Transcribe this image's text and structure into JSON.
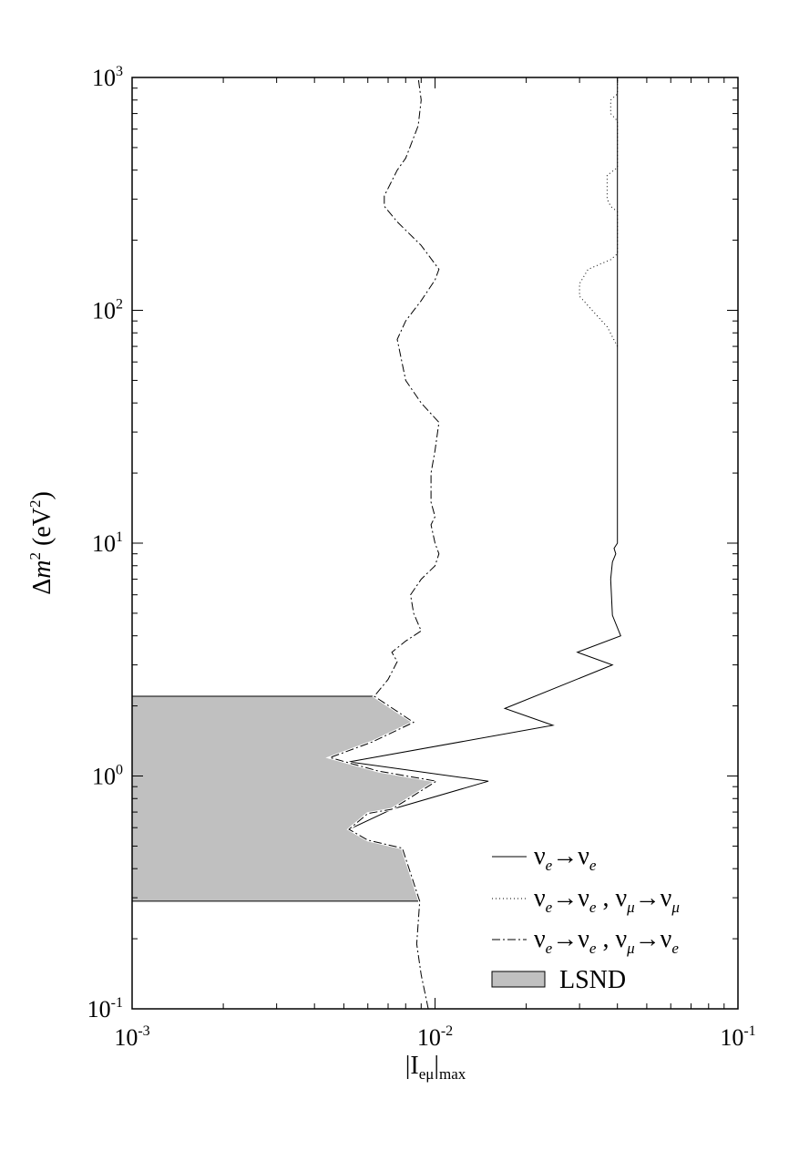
{
  "chart_data": {
    "type": "line",
    "xscale": "log",
    "yscale": "log",
    "xlim": [
      0.001,
      0.1
    ],
    "ylim": [
      0.1,
      1000
    ],
    "xticks": [
      {
        "base": "10",
        "exp": "-3",
        "value": 0.001
      },
      {
        "base": "10",
        "exp": "-2",
        "value": 0.01
      },
      {
        "base": "10",
        "exp": "-1",
        "value": 0.1
      }
    ],
    "yticks": [
      {
        "base": "10",
        "exp": "-1",
        "value": 0.1
      },
      {
        "base": "10",
        "exp": "0",
        "value": 1
      },
      {
        "base": "10",
        "exp": "1",
        "value": 10
      },
      {
        "base": "10",
        "exp": "2",
        "value": 100
      },
      {
        "base": "10",
        "exp": "3",
        "value": 1000
      }
    ],
    "xlabel": {
      "main": "|I",
      "sub": "eμ",
      "rest": "|",
      "sub2": "max"
    },
    "ylabel": {
      "pre": "Δ",
      "var": "m",
      "sup": "2",
      "post": " (eV",
      "sup2": "2",
      "close": ")"
    },
    "grid": false,
    "legend_position": "bottom-right",
    "legend": [
      {
        "parts": [
          "ν",
          "e",
          "→ν",
          "e"
        ],
        "style": "solid"
      },
      {
        "parts": [
          "ν",
          "e",
          "→ν",
          "e",
          " , ν",
          "μ",
          "→ν",
          "μ"
        ],
        "style": "dotted"
      },
      {
        "parts": [
          "ν",
          "e",
          "→ν",
          "e",
          " , ν",
          "μ",
          "→ν",
          "e"
        ],
        "style": "dashdot"
      },
      {
        "label": "LSND",
        "style": "fill"
      }
    ],
    "lsnd_region": {
      "color": "#c0c0c0",
      "points": [
        [
          0.001,
          2.2
        ],
        [
          0.0063,
          2.2
        ],
        [
          0.0085,
          1.7
        ],
        [
          0.0062,
          1.4
        ],
        [
          0.0045,
          1.2
        ],
        [
          0.0065,
          1.05
        ],
        [
          0.0101,
          0.95
        ],
        [
          0.0072,
          0.72
        ],
        [
          0.006,
          0.69
        ],
        [
          0.0052,
          0.59
        ],
        [
          0.006,
          0.53
        ],
        [
          0.0078,
          0.49
        ],
        [
          0.0088,
          0.29
        ],
        [
          0.001,
          0.29
        ]
      ]
    },
    "series": [
      {
        "style": "solid",
        "points": [
          [
            0.0095,
            0.1
          ],
          [
            0.009,
            0.14
          ],
          [
            0.0087,
            0.19
          ],
          [
            0.0089,
            0.29
          ],
          [
            0.0078,
            0.49
          ],
          [
            0.006,
            0.53
          ],
          [
            0.0052,
            0.59
          ],
          [
            0.0072,
            0.72
          ],
          [
            0.015,
            0.95
          ],
          [
            0.0052,
            1.15
          ],
          [
            0.0245,
            1.65
          ],
          [
            0.017,
            1.95
          ],
          [
            0.0385,
            3.0
          ],
          [
            0.0295,
            3.4
          ],
          [
            0.041,
            4.0
          ],
          [
            0.0385,
            4.9
          ],
          [
            0.038,
            7.0
          ],
          [
            0.0385,
            8.3
          ],
          [
            0.0395,
            9.0
          ],
          [
            0.039,
            9.5
          ],
          [
            0.04,
            10.0
          ],
          [
            0.04,
            1000
          ]
        ]
      },
      {
        "style": "dotted",
        "points": [
          [
            0.04,
            70
          ],
          [
            0.037,
            85
          ],
          [
            0.033,
            100
          ],
          [
            0.03,
            115
          ],
          [
            0.03,
            130
          ],
          [
            0.032,
            150
          ],
          [
            0.038,
            165
          ],
          [
            0.04,
            175
          ],
          [
            0.04,
            265
          ],
          [
            0.038,
            280
          ],
          [
            0.037,
            300
          ],
          [
            0.037,
            380
          ],
          [
            0.04,
            410
          ],
          [
            0.04,
            650
          ],
          [
            0.038,
            700
          ],
          [
            0.038,
            800
          ],
          [
            0.04,
            850
          ],
          [
            0.04,
            1000
          ]
        ]
      },
      {
        "style": "dashdot",
        "points": [
          [
            0.0095,
            0.1
          ],
          [
            0.009,
            0.14
          ],
          [
            0.0087,
            0.19
          ],
          [
            0.0089,
            0.29
          ],
          [
            0.0078,
            0.49
          ],
          [
            0.006,
            0.53
          ],
          [
            0.0052,
            0.59
          ],
          [
            0.006,
            0.69
          ],
          [
            0.0072,
            0.72
          ],
          [
            0.0101,
            0.95
          ],
          [
            0.0065,
            1.05
          ],
          [
            0.0045,
            1.2
          ],
          [
            0.0062,
            1.4
          ],
          [
            0.0085,
            1.7
          ],
          [
            0.0063,
            2.2
          ],
          [
            0.007,
            2.6
          ],
          [
            0.0075,
            3.1
          ],
          [
            0.0072,
            3.4
          ],
          [
            0.008,
            3.8
          ],
          [
            0.009,
            4.2
          ],
          [
            0.0085,
            5.0
          ],
          [
            0.0083,
            6.0
          ],
          [
            0.009,
            7.0
          ],
          [
            0.01,
            8.0
          ],
          [
            0.0103,
            9.0
          ],
          [
            0.01,
            10.0
          ],
          [
            0.0097,
            12
          ],
          [
            0.01,
            13
          ],
          [
            0.0097,
            15
          ],
          [
            0.0097,
            20
          ],
          [
            0.01,
            25
          ],
          [
            0.0103,
            33
          ],
          [
            0.009,
            40
          ],
          [
            0.008,
            50
          ],
          [
            0.0075,
            75
          ],
          [
            0.008,
            90
          ],
          [
            0.009,
            110
          ],
          [
            0.01,
            135
          ],
          [
            0.0103,
            150
          ],
          [
            0.009,
            190
          ],
          [
            0.0075,
            240
          ],
          [
            0.0068,
            280
          ],
          [
            0.0068,
            310
          ],
          [
            0.0075,
            400
          ],
          [
            0.008,
            450
          ],
          [
            0.0088,
            620
          ],
          [
            0.009,
            800
          ],
          [
            0.0088,
            1000
          ]
        ]
      }
    ]
  }
}
